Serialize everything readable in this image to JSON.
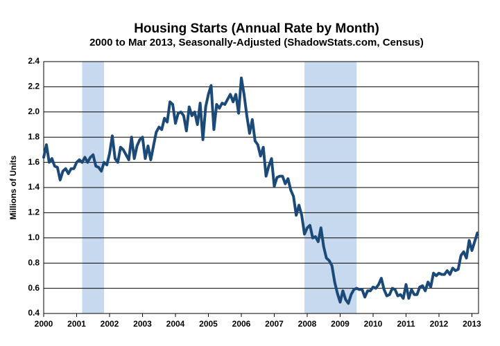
{
  "chart_data": {
    "type": "line",
    "title": "Housing Starts (Annual Rate by Month)",
    "subtitle": "2000 to Mar 2013, Seasonally-Adjusted (ShadowStats.com, Census)",
    "y_label": "Millions of Units",
    "color": "#1c4a78",
    "shade_color": "#c6d9ee",
    "shaded_ranges": [
      [
        2001.167,
        2001.833
      ],
      [
        2007.917,
        2009.5
      ]
    ],
    "x": [
      2000,
      2000.083,
      2000.167,
      2000.25,
      2000.333,
      2000.417,
      2000.5,
      2000.583,
      2000.667,
      2000.75,
      2000.833,
      2000.917,
      2001,
      2001.083,
      2001.167,
      2001.25,
      2001.333,
      2001.417,
      2001.5,
      2001.583,
      2001.667,
      2001.75,
      2001.833,
      2001.917,
      2002,
      2002.083,
      2002.167,
      2002.25,
      2002.333,
      2002.417,
      2002.5,
      2002.583,
      2002.667,
      2002.75,
      2002.833,
      2002.917,
      2003,
      2003.083,
      2003.167,
      2003.25,
      2003.333,
      2003.417,
      2003.5,
      2003.583,
      2003.667,
      2003.75,
      2003.833,
      2003.917,
      2004,
      2004.083,
      2004.167,
      2004.25,
      2004.333,
      2004.417,
      2004.5,
      2004.583,
      2004.667,
      2004.75,
      2004.833,
      2004.917,
      2005,
      2005.083,
      2005.167,
      2005.25,
      2005.333,
      2005.417,
      2005.5,
      2005.583,
      2005.667,
      2005.75,
      2005.833,
      2005.917,
      2006,
      2006.083,
      2006.167,
      2006.25,
      2006.333,
      2006.417,
      2006.5,
      2006.583,
      2006.667,
      2006.75,
      2006.833,
      2006.917,
      2007,
      2007.083,
      2007.167,
      2007.25,
      2007.333,
      2007.417,
      2007.5,
      2007.583,
      2007.667,
      2007.75,
      2007.833,
      2007.917,
      2008,
      2008.083,
      2008.167,
      2008.25,
      2008.333,
      2008.417,
      2008.5,
      2008.583,
      2008.667,
      2008.75,
      2008.833,
      2008.917,
      2009,
      2009.083,
      2009.167,
      2009.25,
      2009.333,
      2009.417,
      2009.5,
      2009.583,
      2009.667,
      2009.75,
      2009.833,
      2009.917,
      2010,
      2010.083,
      2010.167,
      2010.25,
      2010.333,
      2010.417,
      2010.5,
      2010.583,
      2010.667,
      2010.75,
      2010.833,
      2010.917,
      2011,
      2011.083,
      2011.167,
      2011.25,
      2011.333,
      2011.417,
      2011.5,
      2011.583,
      2011.667,
      2011.75,
      2011.833,
      2011.917,
      2012,
      2012.083,
      2012.167,
      2012.25,
      2012.333,
      2012.417,
      2012.5,
      2012.583,
      2012.667,
      2012.75,
      2012.833,
      2012.917,
      2013,
      2013.083,
      2013.167
    ],
    "values": [
      1.64,
      1.74,
      1.6,
      1.63,
      1.57,
      1.56,
      1.46,
      1.53,
      1.55,
      1.51,
      1.55,
      1.55,
      1.6,
      1.62,
      1.6,
      1.64,
      1.6,
      1.64,
      1.66,
      1.57,
      1.56,
      1.53,
      1.6,
      1.58,
      1.67,
      1.81,
      1.63,
      1.6,
      1.72,
      1.7,
      1.66,
      1.62,
      1.8,
      1.63,
      1.73,
      1.78,
      1.8,
      1.63,
      1.73,
      1.62,
      1.73,
      1.84,
      1.88,
      1.86,
      1.95,
      1.92,
      2.08,
      2.06,
      1.91,
      1.99,
      2.0,
      1.97,
      1.85,
      2.04,
      1.97,
      2.0,
      1.9,
      2.07,
      1.78,
      2.04,
      2.14,
      2.21,
      1.86,
      2.06,
      2.03,
      2.07,
      2.06,
      2.1,
      2.14,
      2.08,
      2.14,
      1.99,
      2.27,
      2.14,
      1.97,
      1.83,
      1.94,
      1.77,
      1.74,
      1.65,
      1.72,
      1.49,
      1.57,
      1.63,
      1.41,
      1.48,
      1.49,
      1.49,
      1.43,
      1.47,
      1.38,
      1.33,
      1.18,
      1.26,
      1.18,
      1.03,
      1.08,
      1.1,
      1.0,
      1.01,
      0.97,
      1.08,
      0.93,
      0.84,
      0.82,
      0.78,
      0.65,
      0.56,
      0.49,
      0.58,
      0.51,
      0.48,
      0.55,
      0.59,
      0.6,
      0.59,
      0.59,
      0.53,
      0.58,
      0.58,
      0.61,
      0.6,
      0.63,
      0.68,
      0.59,
      0.54,
      0.55,
      0.6,
      0.59,
      0.54,
      0.55,
      0.52,
      0.63,
      0.52,
      0.59,
      0.55,
      0.55,
      0.61,
      0.62,
      0.58,
      0.65,
      0.61,
      0.72,
      0.7,
      0.72,
      0.71,
      0.71,
      0.74,
      0.71,
      0.76,
      0.74,
      0.75,
      0.86,
      0.89,
      0.84,
      0.98,
      0.9,
      0.97,
      1.04
    ],
    "xlim": [
      2000,
      2013.2
    ],
    "xticks": [
      2000,
      2001,
      2002,
      2003,
      2004,
      2005,
      2006,
      2007,
      2008,
      2009,
      2010,
      2011,
      2012,
      2013
    ],
    "ylim": [
      0.4,
      2.4
    ],
    "yticks": [
      0.4,
      0.6,
      0.8,
      {
        "value": 1,
        "label": "1.0"
      },
      1.2,
      1.4,
      1.6,
      1.8,
      {
        "value": 2,
        "label": "2.0"
      },
      2.2,
      2.4
    ],
    "grid": true
  }
}
